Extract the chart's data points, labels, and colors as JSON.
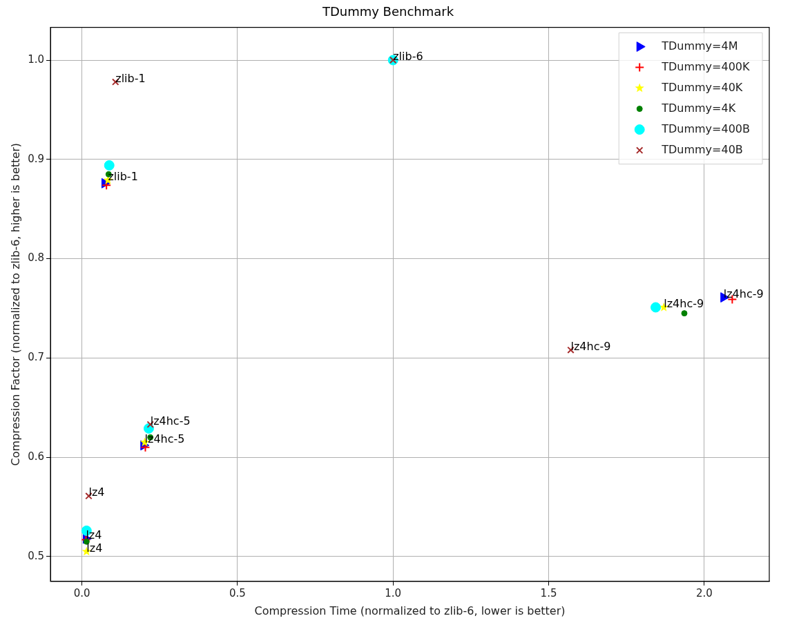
{
  "chart_data": {
    "type": "scatter",
    "title": "TDummy Benchmark",
    "xlabel": "Compression Time (normalized to zlib-6, lower is better)",
    "ylabel": "Compression Factor (normalized to zlib-6, higher is better)",
    "xlim": [
      -0.101,
      2.209
    ],
    "ylim": [
      0.475,
      1.033
    ],
    "xticks": [
      {
        "value": 0,
        "label": "0.0"
      },
      {
        "value": 0.5,
        "label": "0.5"
      },
      {
        "value": 1,
        "label": "1.0"
      },
      {
        "value": 1.5,
        "label": "1.5"
      },
      {
        "value": 2,
        "label": "2.0"
      }
    ],
    "yticks": [
      {
        "value": 0.5,
        "label": "0.5"
      },
      {
        "value": 0.6,
        "label": "0.6"
      },
      {
        "value": 0.7,
        "label": "0.7"
      },
      {
        "value": 0.8,
        "label": "0.8"
      },
      {
        "value": 0.9,
        "label": "0.9"
      },
      {
        "value": 1,
        "label": "1.0"
      }
    ],
    "grid": true,
    "legend": "top right",
    "series": [
      {
        "name": "TDummy=4M",
        "color": "#0000ff",
        "marker": "triangle",
        "x": [
          0.013,
          0.198,
          2.062,
          0.073,
          null
        ],
        "values": [
          0.518,
          0.612,
          0.761,
          0.876,
          null
        ]
      },
      {
        "name": "TDummy=400K",
        "color": "#ff0000",
        "marker": "cross",
        "x": [
          0.013,
          0.204,
          2.09,
          0.079,
          null
        ],
        "values": [
          0.517,
          0.61,
          0.759,
          0.874,
          null
        ]
      },
      {
        "name": "TDummy=40K",
        "color": "#ffff00",
        "marker": "star",
        "x": [
          0.015,
          0.202,
          1.87,
          0.084,
          null
        ],
        "values": [
          0.505,
          0.615,
          0.751,
          0.879,
          null
        ]
      },
      {
        "name": "TDummy=4K",
        "color": "#008000",
        "marker": "circle",
        "x": [
          0.015,
          0.22,
          1.936,
          0.086,
          null
        ],
        "values": [
          0.515,
          0.62,
          0.745,
          0.885,
          null
        ]
      },
      {
        "name": "TDummy=400B",
        "color": "#00ffff",
        "marker": "circle",
        "x": [
          0.015,
          0.215,
          1.844,
          0.088,
          1
        ],
        "values": [
          0.526,
          0.629,
          0.751,
          0.894,
          1
        ]
      },
      {
        "name": "TDummy=40B",
        "color": "#a52a2a",
        "marker": "x",
        "x": [
          0.022,
          0.22,
          1.571,
          0.108,
          1
        ],
        "values": [
          0.561,
          0.633,
          0.708,
          0.978,
          1
        ]
      }
    ],
    "annotations": [
      {
        "text": "lz4",
        "x": 0.022,
        "y": 0.561
      },
      {
        "text": "lz4",
        "x": 0.013,
        "y": 0.518
      },
      {
        "text": "lz4",
        "x": 0.015,
        "y": 0.505
      },
      {
        "text": "lz4hc-5",
        "x": 0.22,
        "y": 0.633
      },
      {
        "text": "lz4hc-5",
        "x": 0.202,
        "y": 0.615
      },
      {
        "text": "lz4hc-9",
        "x": 1.571,
        "y": 0.708
      },
      {
        "text": "lz4hc-9",
        "x": 1.87,
        "y": 0.751
      },
      {
        "text": "lz4hc-9",
        "x": 2.062,
        "y": 0.761
      },
      {
        "text": "zlib-1",
        "x": 0.108,
        "y": 0.978
      },
      {
        "text": "zlib-1",
        "x": 0.084,
        "y": 0.879
      },
      {
        "text": "zlib-6",
        "x": 1,
        "y": 1
      }
    ]
  }
}
